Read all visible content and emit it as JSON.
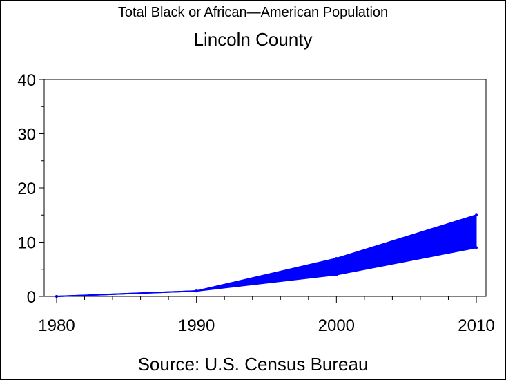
{
  "chart_data": {
    "type": "area",
    "title": "Total Black or African—American Population",
    "subtitle": "Lincoln County",
    "source": "Source: U.S. Census Bureau",
    "x": [
      1980,
      1990,
      2000,
      2010
    ],
    "series": [
      {
        "values": [
          0,
          1,
          7,
          15
        ]
      },
      {
        "values": [
          0,
          1,
          4,
          9
        ]
      }
    ],
    "xlim": [
      1980,
      2010
    ],
    "ylim": [
      0,
      40
    ],
    "xticks": [
      "1980",
      "1990",
      "2000",
      "2010"
    ],
    "yticks": [
      "0",
      "10",
      "20",
      "30",
      "40"
    ],
    "fill_color": "#0000ff",
    "grid": false
  }
}
